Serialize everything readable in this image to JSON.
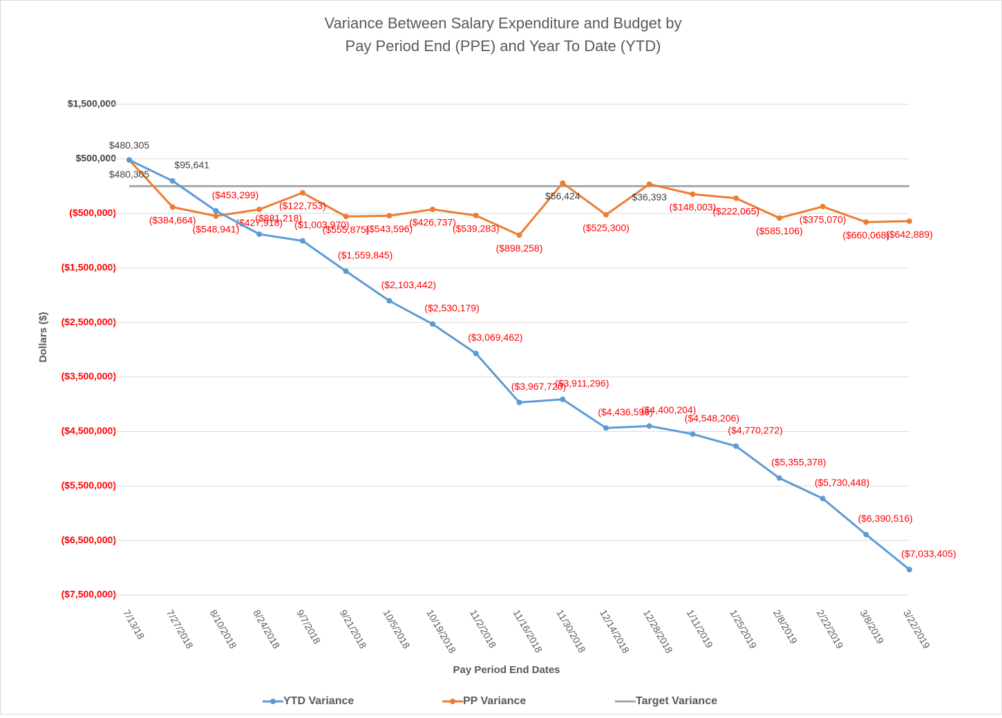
{
  "chart_data": {
    "type": "line",
    "title": [
      "Variance Between Salary Expenditure and Budget by",
      "Pay Period End (PPE) and Year To Date (YTD)"
    ],
    "y_label": "Dollars ($)",
    "x_label": "Pay Period End Dates",
    "categories": [
      "7/13/18",
      "7/27/2018",
      "8/10/2018",
      "8/24/2018",
      "9/7/2018",
      "9/21/2018",
      "10/5/2018",
      "10/19/2018",
      "11/2/2018",
      "11/16/2018",
      "11/30/2018",
      "12/14/2018",
      "12/28/2018",
      "1/11/2019",
      "1/25/2019",
      "2/8/2019",
      "2/22/2019",
      "3/8/2019",
      "3/22/2019"
    ],
    "series": [
      {
        "name": "YTD Variance",
        "color": "#5b9bd5",
        "markers": true,
        "values": [
          480305,
          95641,
          -453299,
          -881218,
          -1003970,
          -1559845,
          -2103442,
          -2530179,
          -3069462,
          -3967720,
          -3911296,
          -4436596,
          -4400204,
          -4548206,
          -4770272,
          -5355378,
          -5730448,
          -6390516,
          -7033405
        ],
        "value_labels": [
          "$480,305",
          "$95,641",
          "($453,299)",
          "($881,218)",
          "($1,003,970)",
          "($1,559,845)",
          "($2,103,442)",
          "($2,530,179)",
          "($3,069,462)",
          "($3,967,720)",
          "($3,911,296)",
          "($4,436,596)",
          "($4,400,204)",
          "($4,548,206)",
          "($4,770,272)",
          "($5,355,378)",
          "($5,730,448)",
          "($6,390,516)",
          "($7,033,405)"
        ]
      },
      {
        "name": "PP Variance",
        "color": "#ed7d31",
        "markers": true,
        "values": [
          480305,
          -384664,
          -548941,
          -427918,
          -122753,
          -555875,
          -543596,
          -426737,
          -539283,
          -898258,
          56424,
          -525300,
          36393,
          -148003,
          -222065,
          -585106,
          -375070,
          -660068,
          -642889
        ],
        "value_labels": [
          "$480,305",
          "($384,664)",
          "($548,941)",
          "($427,918)",
          "($122,753)",
          "($555,875)",
          "($543,596)",
          "($426,737)",
          "($539,283)",
          "($898,258)",
          "$56,424",
          "($525,300)",
          "$36,393",
          "($148,003)",
          "($222,065)",
          "($585,106)",
          "($375,070)",
          "($660,068)",
          "($642,889)"
        ]
      },
      {
        "name": "Target Variance",
        "color": "#a5a5a5",
        "markers": false,
        "values": [
          0,
          0,
          0,
          0,
          0,
          0,
          0,
          0,
          0,
          0,
          0,
          0,
          0,
          0,
          0,
          0,
          0,
          0,
          0
        ]
      }
    ],
    "ylim": [
      -7500000,
      1500000
    ],
    "yticks": [
      {
        "value": 1500000,
        "label": "$1,500,000"
      },
      {
        "value": 500000,
        "label": "$500,000"
      },
      {
        "value": -500000,
        "label": "($500,000)"
      },
      {
        "value": -1500000,
        "label": "($1,500,000)"
      },
      {
        "value": -2500000,
        "label": "($2,500,000)"
      },
      {
        "value": -3500000,
        "label": "($3,500,000)"
      },
      {
        "value": -4500000,
        "label": "($4,500,000)"
      },
      {
        "value": -5500000,
        "label": "($5,500,000)"
      },
      {
        "value": -6500000,
        "label": "($6,500,000)"
      },
      {
        "value": -7500000,
        "label": "($7,500,000)"
      }
    ],
    "grid": true,
    "legend": "bottom",
    "negative_color": "#ff0000",
    "positive_color": "#404040"
  }
}
